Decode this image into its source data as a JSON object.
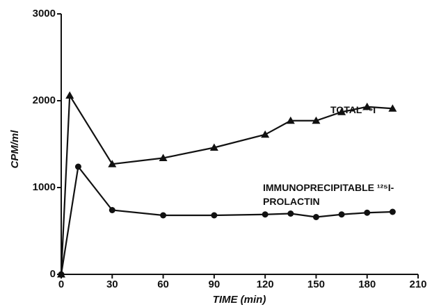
{
  "chart_data": {
    "type": "line",
    "x_label": "TIME (min)",
    "y_label": "CPM/ml",
    "xlim": [
      0,
      210
    ],
    "xticks": [
      0,
      30,
      60,
      90,
      120,
      150,
      180,
      210
    ],
    "ylim": [
      0,
      3000
    ],
    "yticks": [
      0,
      1000,
      2000,
      3000
    ],
    "grid": false,
    "series": [
      {
        "name": "TOTAL¹²⁵I",
        "color": "#111111",
        "marker": "triangle",
        "x": [
          0,
          5,
          30,
          60,
          90,
          120,
          135,
          150,
          165,
          180,
          195
        ],
        "values": [
          0,
          2060,
          1270,
          1340,
          1460,
          1610,
          1770,
          1770,
          1870,
          1930,
          1910
        ]
      },
      {
        "name": "IMMUNOPRECIPITABLE ¹²⁵I-PROLACTIN",
        "color": "#111111",
        "marker": "circle",
        "x": [
          0,
          10,
          30,
          60,
          90,
          120,
          135,
          150,
          165,
          180,
          195
        ],
        "values": [
          0,
          1240,
          740,
          680,
          680,
          690,
          700,
          660,
          690,
          710,
          720
        ]
      }
    ]
  }
}
